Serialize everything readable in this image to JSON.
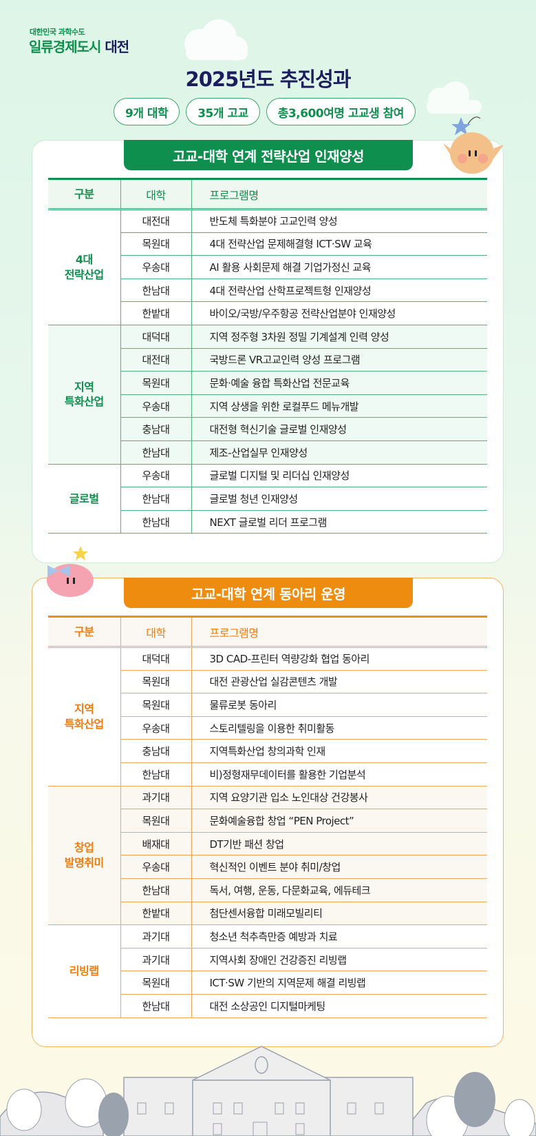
{
  "header": {
    "logo_small": "대한민국 과학수도",
    "logo_main": "일류경제도시",
    "logo_city": "대전",
    "title": "2025년도 추진성과",
    "badges": [
      "9개 대학",
      "35개 고교",
      "총3,600여명 고교생 참여"
    ]
  },
  "colors": {
    "green": "#0f8f4e",
    "orange": "#ee8c0f",
    "navy": "#1b1d5c"
  },
  "section1": {
    "title": "고교-대학 연계 전략산업 인재양성",
    "headers": [
      "구분",
      "대학",
      "프로그램명"
    ],
    "groups": [
      {
        "name": [
          "4대",
          "전략산업"
        ],
        "rows": [
          [
            "대전대",
            "반도체 특화분야 고교인력 양성"
          ],
          [
            "목원대",
            "4대 전략산업 문제해결형 ICT·SW 교육"
          ],
          [
            "우송대",
            "AI 활용 사회문제 해결 기업가정신 교육"
          ],
          [
            "한남대",
            "4대 전략산업 산학프로젝트형 인재양성"
          ],
          [
            "한밭대",
            "바이오/국방/우주항공 전략산업분야 인재양성"
          ]
        ]
      },
      {
        "name": [
          "지역",
          "특화산업"
        ],
        "rows": [
          [
            "대덕대",
            "지역 정주형 3차원 정밀 기계설계 인력 양성"
          ],
          [
            "대전대",
            "국방드론 VR고교인력 양성 프로그램"
          ],
          [
            "목원대",
            "문화·예술 융합 특화산업 전문교육"
          ],
          [
            "우송대",
            "지역 상생을 위한 로컬푸드 메뉴개발"
          ],
          [
            "충남대",
            "대전형 혁신기술 글로벌 인재양성"
          ],
          [
            "한남대",
            "제조-산업실무 인재양성"
          ]
        ]
      },
      {
        "name": [
          "글로벌"
        ],
        "rows": [
          [
            "우송대",
            "글로벌 디지털 및 리더십 인재양성"
          ],
          [
            "한남대",
            "글로벌 청년 인재양성"
          ],
          [
            "한남대",
            "NEXT 글로벌 리더 프로그램"
          ]
        ]
      }
    ]
  },
  "section2": {
    "title": "고교-대학 연계 동아리 운영",
    "headers": [
      "구분",
      "대학",
      "프로그램명"
    ],
    "groups": [
      {
        "name": [
          "지역",
          "특화산업"
        ],
        "rows": [
          [
            "대덕대",
            "3D CAD-프린터 역량강화 협업 동아리"
          ],
          [
            "목원대",
            "대전 관광산업 실감콘텐츠 개발"
          ],
          [
            "목원대",
            "물류로봇 동아리"
          ],
          [
            "우송대",
            "스토리텔링을 이용한 취미활동"
          ],
          [
            "충남대",
            "지역특화산업 창의과학 인재"
          ],
          [
            "한남대",
            "비)정형재무데이터를 활용한 기업분석"
          ]
        ]
      },
      {
        "name": [
          "창업",
          "발명취미"
        ],
        "rows": [
          [
            "과기대",
            "지역 요양기관 입소 노인대상 건강봉사"
          ],
          [
            "목원대",
            "문화예술융합 창업 “PEN Project”"
          ],
          [
            "배재대",
            "DT기반 패션 창업"
          ],
          [
            "우송대",
            "혁신적인 이벤트 분야 취미/창업"
          ],
          [
            "한남대",
            "독서, 여행, 운동, 다문화교육, 에듀테크"
          ],
          [
            "한밭대",
            "첨단센서융합 미래모빌리티"
          ]
        ]
      },
      {
        "name": [
          "리빙랩"
        ],
        "rows": [
          [
            "과기대",
            "청소년 척추측만증 예방과 치료"
          ],
          [
            "과기대",
            "지역사회 장애인 건강증진 리빙랩"
          ],
          [
            "목원대",
            "ICT·SW 기반의 지역문제 해결 리빙랩"
          ],
          [
            "한남대",
            "대전 소상공인 디지털마케팅"
          ]
        ]
      }
    ]
  }
}
